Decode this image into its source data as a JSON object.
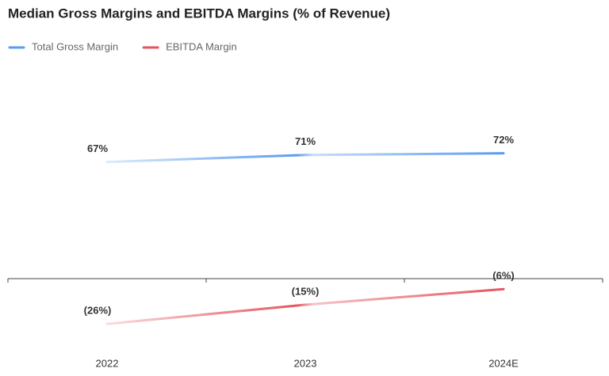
{
  "chart_data": {
    "type": "line",
    "title": "Median Gross Margins and EBITDA Margins (% of Revenue)",
    "categories": [
      "2022",
      "2023",
      "2024E"
    ],
    "series": [
      {
        "name": "Total Gross Margin",
        "color": "#5b9bf0",
        "values": [
          67,
          71,
          72
        ],
        "value_labels": [
          "67%",
          "71%",
          "72%"
        ]
      },
      {
        "name": "EBITDA Margin",
        "color": "#e5555e",
        "values": [
          -26,
          -15,
          -6
        ],
        "value_labels": [
          "(26%)",
          "(15%)",
          "(6%)"
        ]
      }
    ],
    "ylim": [
      -35,
      95
    ],
    "legend": "top-left",
    "grid": false
  }
}
